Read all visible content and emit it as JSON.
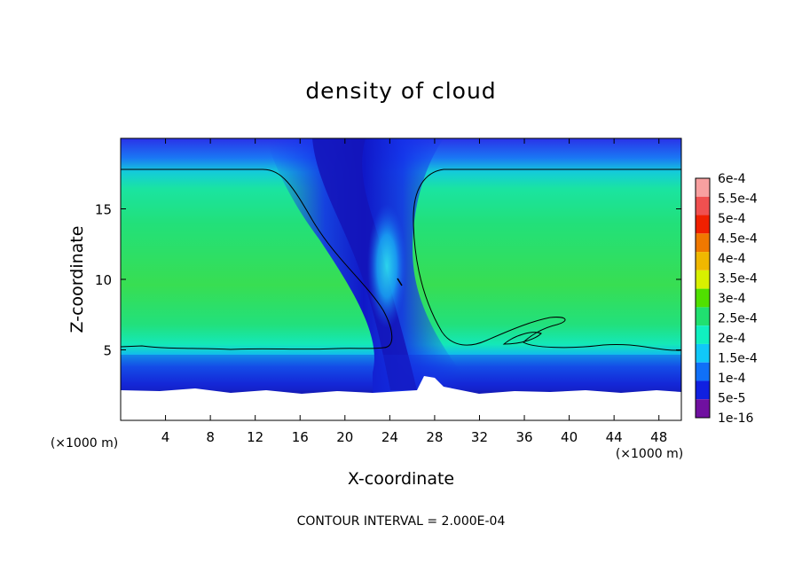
{
  "chart_data": {
    "type": "contour",
    "title": "density of cloud",
    "xlabel": "X-coordinate",
    "ylabel": "Z-coordinate",
    "x_unit": "(×1000 m)",
    "y_unit": "(×1000 m)",
    "x_ticks": [
      4,
      8,
      12,
      16,
      20,
      24,
      28,
      32,
      36,
      40,
      44,
      48
    ],
    "y_ticks": [
      5,
      10,
      15
    ],
    "xlim": [
      0,
      50
    ],
    "ylim": [
      0,
      20
    ],
    "footer": "CONTOUR INTERVAL = 2.000E-04",
    "colorbar": {
      "labels": [
        "6e-4",
        "5.5e-4",
        "5e-4",
        "4.5e-4",
        "4e-4",
        "3.5e-4",
        "3e-4",
        "2.5e-4",
        "2e-4",
        "1.5e-4",
        "1e-4",
        "5e-5",
        "1e-16"
      ],
      "colors": [
        "#f8a0a0",
        "#f05050",
        "#f02000",
        "#f07800",
        "#f0b800",
        "#d8f000",
        "#50e000",
        "#20e070",
        "#10f0c0",
        "#10c8f8",
        "#1070f8",
        "#1020e0",
        "#7010a0"
      ]
    },
    "field": {
      "background_level": "2.5e-4",
      "cloud_layer_z": [
        1.8,
        17.8
      ],
      "clear_column_x": [
        18,
        28
      ],
      "surface_z": [
        1.5,
        3.0
      ]
    }
  }
}
